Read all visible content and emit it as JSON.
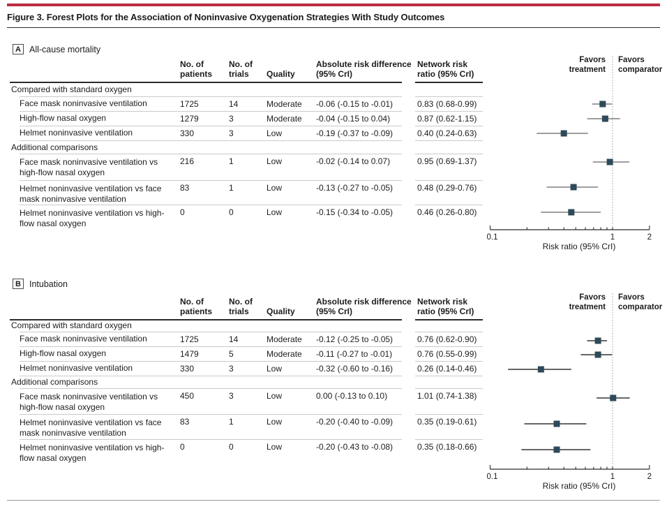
{
  "figure": {
    "title": "Figure 3. Forest Plots for the Association of Noninvasive Oxygenation Strategies With Study Outcomes",
    "accent_color": "#bc2b43",
    "marker_color": "#2d4a59",
    "ci_line_colors": {
      "A": "#7f7f7f",
      "B": "#333333"
    },
    "reference_line_color": "#a6abae"
  },
  "table": {
    "columns": [
      "No. of patients",
      "No. of trials",
      "Quality",
      "Absolute risk difference (95% CrI)",
      "Network risk ratio (95% CrI)"
    ],
    "favors_left": "Favors treatment",
    "favors_right": "Favors comparator"
  },
  "axis": {
    "label": "Risk ratio (95% CrI)",
    "scale": "log",
    "min": 0.1,
    "max": 2,
    "major_tick_labels": [
      "0.1",
      "1",
      "2"
    ],
    "major_ticks": [
      0.1,
      1,
      2
    ],
    "minor_ticks": [
      0.2,
      0.3,
      0.4,
      0.5,
      0.6,
      0.7,
      0.8,
      0.9
    ],
    "reference_line": 1
  },
  "chart_data": [
    {
      "type": "scatter",
      "subtype": "forest-plot",
      "panel": "A",
      "title": "All-cause mortality",
      "xlabel": "Risk ratio (95% CrI)",
      "xscale": "log",
      "xlim": [
        0.1,
        2
      ],
      "reference_line": 1,
      "groups": [
        {
          "header": "Compared with standard oxygen",
          "rows": [
            {
              "label": "Face mask noninvasive ventilation",
              "patients": "1725",
              "trials": "14",
              "quality": "Moderate",
              "abs_risk_diff": "-0.06 (-0.15 to -0.01)",
              "risk_ratio_text": "0.83 (0.68-0.99)",
              "rr": 0.83,
              "ci_low": 0.68,
              "ci_high": 0.99
            },
            {
              "label": "High-flow nasal oxygen",
              "patients": "1279",
              "trials": "3",
              "quality": "Moderate",
              "abs_risk_diff": "-0.04 (-0.15 to 0.04)",
              "risk_ratio_text": "0.87 (0.62-1.15)",
              "rr": 0.87,
              "ci_low": 0.62,
              "ci_high": 1.15
            },
            {
              "label": "Helmet noninvasive ventilation",
              "patients": "330",
              "trials": "3",
              "quality": "Low",
              "abs_risk_diff": "-0.19 (-0.37 to -0.09)",
              "risk_ratio_text": "0.40 (0.24-0.63)",
              "rr": 0.4,
              "ci_low": 0.24,
              "ci_high": 0.63
            }
          ]
        },
        {
          "header": "Additional comparisons",
          "rows": [
            {
              "label": "Face mask noninvasive ventilation vs high-flow nasal oxygen",
              "patients": "216",
              "trials": "1",
              "quality": "Low",
              "abs_risk_diff": "-0.02 (-0.14 to 0.07)",
              "risk_ratio_text": "0.95 (0.69-1.37)",
              "rr": 0.95,
              "ci_low": 0.69,
              "ci_high": 1.37
            },
            {
              "label": "Helmet noninvasive ventilation vs face mask noninvasive ventilation",
              "patients": "83",
              "trials": "1",
              "quality": "Low",
              "abs_risk_diff": "-0.13 (-0.27 to -0.05)",
              "risk_ratio_text": "0.48 (0.29-0.76)",
              "rr": 0.48,
              "ci_low": 0.29,
              "ci_high": 0.76
            },
            {
              "label": "Helmet noninvasive ventilation vs high-flow nasal oxygen",
              "patients": "0",
              "trials": "0",
              "quality": "Low",
              "abs_risk_diff": "-0.15 (-0.34 to -0.05)",
              "risk_ratio_text": "0.46 (0.26-0.80)",
              "rr": 0.46,
              "ci_low": 0.26,
              "ci_high": 0.8
            }
          ]
        }
      ]
    },
    {
      "type": "scatter",
      "subtype": "forest-plot",
      "panel": "B",
      "title": "Intubation",
      "xlabel": "Risk ratio (95% CrI)",
      "xscale": "log",
      "xlim": [
        0.1,
        2
      ],
      "reference_line": 1,
      "groups": [
        {
          "header": "Compared with standard oxygen",
          "rows": [
            {
              "label": "Face mask noninvasive ventilation",
              "patients": "1725",
              "trials": "14",
              "quality": "Moderate",
              "abs_risk_diff": "-0.12 (-0.25 to -0.05)",
              "risk_ratio_text": "0.76 (0.62-0.90)",
              "rr": 0.76,
              "ci_low": 0.62,
              "ci_high": 0.9
            },
            {
              "label": "High-flow nasal oxygen",
              "patients": "1479",
              "trials": "5",
              "quality": "Moderate",
              "abs_risk_diff": "-0.11 (-0.27 to -0.01)",
              "risk_ratio_text": "0.76 (0.55-0.99)",
              "rr": 0.76,
              "ci_low": 0.55,
              "ci_high": 0.99
            },
            {
              "label": "Helmet noninvasive ventilation",
              "patients": "330",
              "trials": "3",
              "quality": "Low",
              "abs_risk_diff": "-0.32 (-0.60 to -0.16)",
              "risk_ratio_text": "0.26 (0.14-0.46)",
              "rr": 0.26,
              "ci_low": 0.14,
              "ci_high": 0.46
            }
          ]
        },
        {
          "header": "Additional comparisons",
          "rows": [
            {
              "label": "Face mask noninvasive ventilation vs high-flow nasal oxygen",
              "patients": "450",
              "trials": "3",
              "quality": "Low",
              "abs_risk_diff": "0.00 (-0.13 to 0.10)",
              "risk_ratio_text": "1.01 (0.74-1.38)",
              "rr": 1.01,
              "ci_low": 0.74,
              "ci_high": 1.38
            },
            {
              "label": "Helmet noninvasive ventilation vs face mask noninvasive ventilation",
              "patients": "83",
              "trials": "1",
              "quality": "Low",
              "abs_risk_diff": "-0.20 (-0.40 to -0.09)",
              "risk_ratio_text": "0.35 (0.19-0.61)",
              "rr": 0.35,
              "ci_low": 0.19,
              "ci_high": 0.61
            },
            {
              "label": "Helmet noninvasive ventilation vs high-flow nasal oxygen",
              "patients": "0",
              "trials": "0",
              "quality": "Low",
              "abs_risk_diff": "-0.20 (-0.43 to -0.08)",
              "risk_ratio_text": "0.35 (0.18-0.66)",
              "rr": 0.35,
              "ci_low": 0.18,
              "ci_high": 0.66
            }
          ]
        }
      ]
    }
  ]
}
